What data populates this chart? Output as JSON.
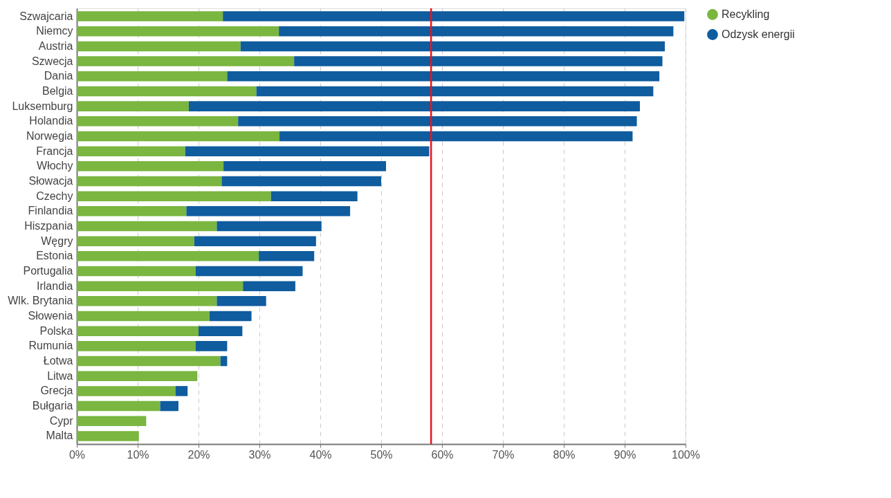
{
  "chart_data": {
    "type": "bar",
    "orientation": "horizontal",
    "stacked": true,
    "categories": [
      "Szwajcaria",
      "Niemcy",
      "Austria",
      "Szwecja",
      "Dania",
      "Belgia",
      "Luksemburg",
      "Holandia",
      "Norwegia",
      "Francja",
      "Włochy",
      "Słowacja",
      "Czechy",
      "Finlandia",
      "Hiszpania",
      "Węgry",
      "Estonia",
      "Portugalia",
      "Irlandia",
      "Wlk. Brytania",
      "Słowenia",
      "Polska",
      "Rumunia",
      "Łotwa",
      "Litwa",
      "Grecja",
      "Bułgaria",
      "Cypr",
      "Malta"
    ],
    "series": [
      {
        "name": "Recykling",
        "color": "#7ab640",
        "values": [
          24.0,
          33.2,
          26.9,
          35.7,
          24.7,
          29.5,
          18.4,
          26.5,
          33.3,
          17.8,
          24.1,
          23.8,
          31.9,
          18.0,
          23.0,
          19.3,
          29.9,
          19.5,
          27.3,
          23.0,
          21.8,
          20.0,
          19.5,
          23.6,
          19.8,
          16.2,
          13.7,
          11.4,
          10.2
        ]
      },
      {
        "name": "Odzysk energii",
        "color": "#0f5c9e",
        "values": [
          75.8,
          64.8,
          69.7,
          60.5,
          71.0,
          65.2,
          74.1,
          65.5,
          58.0,
          40.1,
          26.7,
          26.2,
          14.2,
          26.9,
          17.2,
          20.0,
          9.1,
          17.6,
          8.6,
          8.1,
          6.9,
          7.2,
          5.2,
          1.1,
          null,
          2.0,
          3.0,
          null,
          null
        ]
      }
    ],
    "xlim": [
      0,
      100
    ],
    "xticks": [
      {
        "value": 0,
        "label": "0%"
      },
      {
        "value": 10,
        "label": "10%"
      },
      {
        "value": 20,
        "label": "20%"
      },
      {
        "value": 30,
        "label": "30%"
      },
      {
        "value": 40,
        "label": "40%"
      },
      {
        "value": 50,
        "label": "50%"
      },
      {
        "value": 60,
        "label": "60%"
      },
      {
        "value": 70,
        "label": "70%"
      },
      {
        "value": 80,
        "label": "80%"
      },
      {
        "value": 90,
        "label": "90%"
      },
      {
        "value": 100,
        "label": "100%"
      }
    ],
    "ref_lines": [
      {
        "axis": "x",
        "value": 58.2,
        "color": "#e8141b"
      }
    ],
    "grid": "x",
    "legend": "right",
    "marker": "circle"
  }
}
